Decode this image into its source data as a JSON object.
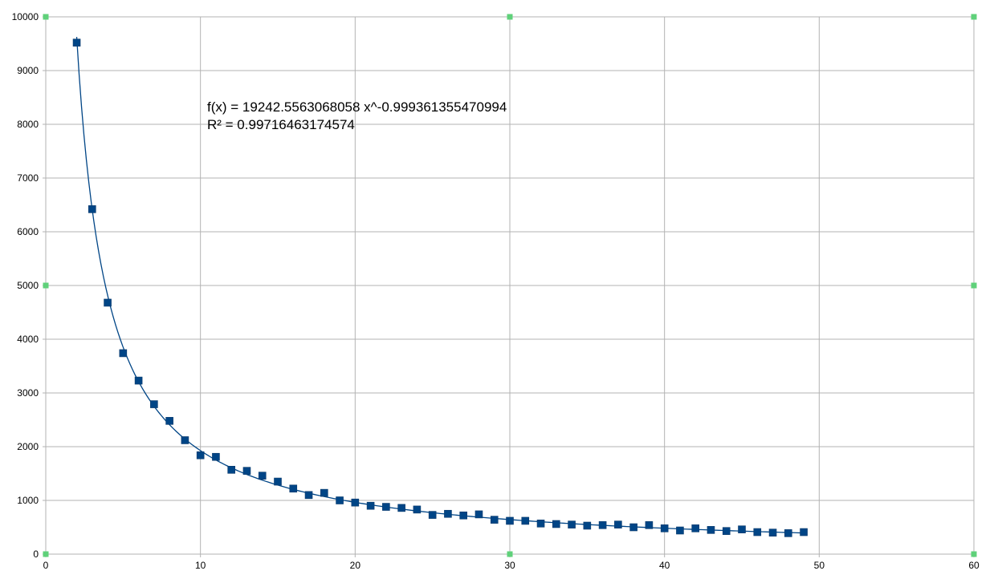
{
  "chart_data": {
    "type": "scatter",
    "title": "",
    "xlabel": "",
    "ylabel": "",
    "xlim": [
      0,
      60
    ],
    "ylim": [
      0,
      10000
    ],
    "x_ticks": [
      0,
      10,
      20,
      30,
      40,
      50,
      60
    ],
    "y_ticks": [
      0,
      1000,
      2000,
      3000,
      4000,
      5000,
      6000,
      7000,
      8000,
      9000,
      10000
    ],
    "grid": true,
    "legend": "none",
    "marker": "square",
    "marker_color": "#004586",
    "trendline_color": "#004586",
    "handle_color": "#5fd17a",
    "series": [
      {
        "x": [
          2,
          3,
          4,
          5,
          6,
          7,
          8,
          9,
          10,
          11,
          12,
          13,
          14,
          15,
          16,
          17,
          18,
          19,
          20,
          21,
          22,
          23,
          24,
          25,
          26,
          27,
          28,
          29,
          30,
          31,
          32,
          33,
          34,
          35,
          36,
          37,
          38,
          39,
          40,
          41,
          42,
          43,
          44,
          45,
          46,
          47,
          48,
          49
        ],
        "y": [
          9520,
          6420,
          4680,
          3740,
          3230,
          2790,
          2480,
          2120,
          1840,
          1810,
          1570,
          1550,
          1460,
          1350,
          1220,
          1100,
          1140,
          1000,
          960,
          900,
          880,
          860,
          830,
          730,
          750,
          720,
          740,
          640,
          620,
          620,
          570,
          560,
          550,
          530,
          540,
          550,
          500,
          540,
          480,
          440,
          480,
          450,
          430,
          460,
          410,
          400,
          390,
          410
        ]
      }
    ],
    "trendline": {
      "type": "power",
      "coefficient": 19242.5563068058,
      "exponent": -0.999361355470994,
      "x_range": [
        2,
        49
      ],
      "equation_label": "f(x) = 19242.5563068058 x^-0.999361355470994",
      "r2_label": "R² = 0.99716463174574"
    }
  }
}
